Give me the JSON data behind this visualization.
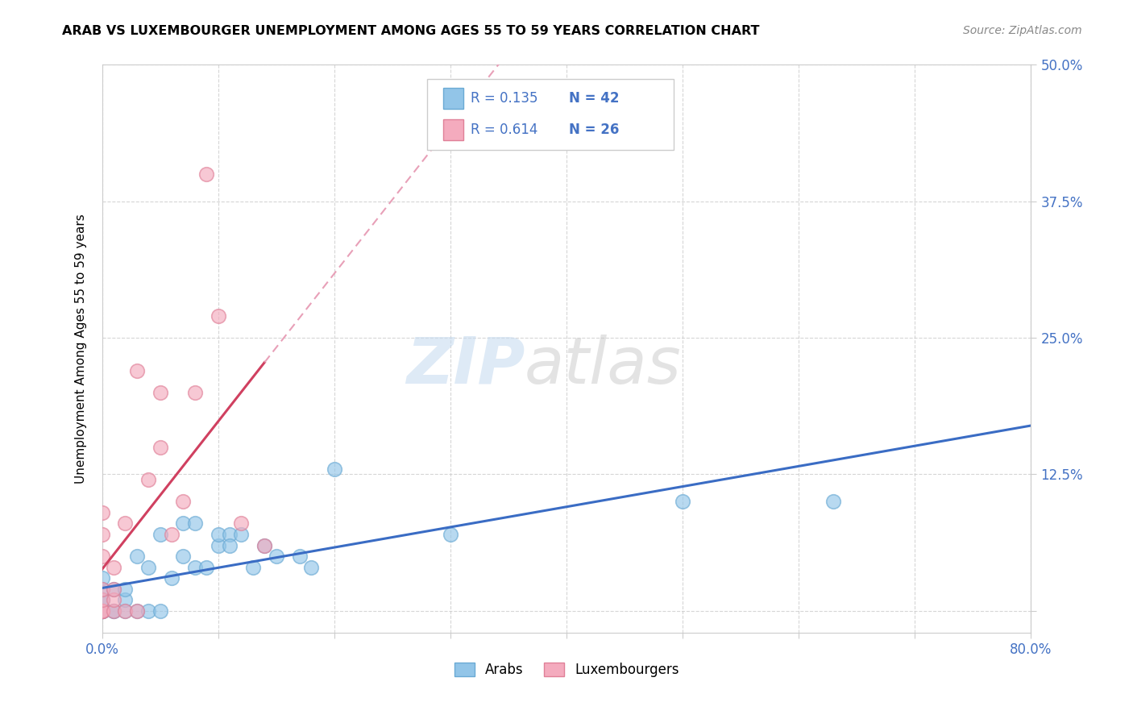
{
  "title": "ARAB VS LUXEMBOURGER UNEMPLOYMENT AMONG AGES 55 TO 59 YEARS CORRELATION CHART",
  "source": "Source: ZipAtlas.com",
  "ylabel": "Unemployment Among Ages 55 to 59 years",
  "xlim": [
    0.0,
    0.8
  ],
  "ylim": [
    -0.02,
    0.5
  ],
  "xticks": [
    0.0,
    0.1,
    0.2,
    0.3,
    0.4,
    0.5,
    0.6,
    0.7,
    0.8
  ],
  "xticklabels": [
    "0.0%",
    "",
    "",
    "",
    "",
    "",
    "",
    "",
    "80.0%"
  ],
  "ytick_positions": [
    0.0,
    0.125,
    0.25,
    0.375,
    0.5
  ],
  "yticklabels_right": [
    "",
    "12.5%",
    "25.0%",
    "37.5%",
    "50.0%"
  ],
  "arab_color": "#92C5E8",
  "arab_edge_color": "#6AAAD4",
  "lux_color": "#F4ABBE",
  "lux_edge_color": "#E08098",
  "arab_line_color": "#3A6CC4",
  "lux_line_color": "#D04060",
  "lux_dash_color": "#E8A0B8",
  "legend_R_arab": "R = 0.135",
  "legend_N_arab": "N = 42",
  "legend_R_lux": "R = 0.614",
  "legend_N_lux": "N = 26",
  "legend_text_color": "#4472C4",
  "arab_x": [
    0.0,
    0.0,
    0.0,
    0.0,
    0.0,
    0.0,
    0.0,
    0.0,
    0.0,
    0.0,
    0.01,
    0.01,
    0.01,
    0.02,
    0.02,
    0.02,
    0.03,
    0.03,
    0.04,
    0.04,
    0.05,
    0.05,
    0.06,
    0.07,
    0.07,
    0.08,
    0.08,
    0.09,
    0.1,
    0.1,
    0.11,
    0.11,
    0.12,
    0.13,
    0.14,
    0.15,
    0.17,
    0.18,
    0.2,
    0.3,
    0.5,
    0.63
  ],
  "arab_y": [
    0.0,
    0.0,
    0.0,
    0.0,
    0.0,
    0.0,
    0.01,
    0.01,
    0.02,
    0.03,
    0.0,
    0.0,
    0.02,
    0.0,
    0.01,
    0.02,
    0.0,
    0.05,
    0.0,
    0.04,
    0.0,
    0.07,
    0.03,
    0.05,
    0.08,
    0.04,
    0.08,
    0.04,
    0.06,
    0.07,
    0.07,
    0.06,
    0.07,
    0.04,
    0.06,
    0.05,
    0.05,
    0.04,
    0.13,
    0.07,
    0.1,
    0.1
  ],
  "lux_x": [
    0.0,
    0.0,
    0.0,
    0.0,
    0.0,
    0.0,
    0.0,
    0.0,
    0.01,
    0.01,
    0.01,
    0.01,
    0.02,
    0.02,
    0.03,
    0.03,
    0.04,
    0.05,
    0.05,
    0.06,
    0.07,
    0.08,
    0.09,
    0.1,
    0.12,
    0.14
  ],
  "lux_y": [
    0.0,
    0.0,
    0.0,
    0.01,
    0.02,
    0.05,
    0.07,
    0.09,
    0.0,
    0.01,
    0.02,
    0.04,
    0.0,
    0.08,
    0.0,
    0.22,
    0.12,
    0.15,
    0.2,
    0.07,
    0.1,
    0.2,
    0.4,
    0.27,
    0.08,
    0.06
  ]
}
